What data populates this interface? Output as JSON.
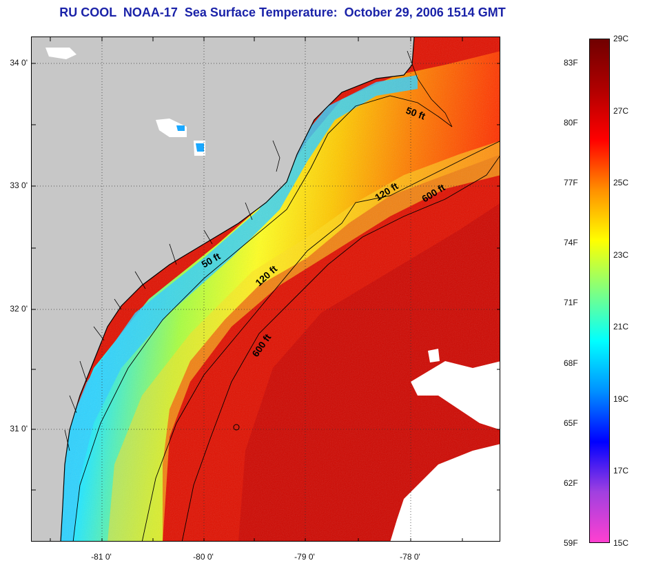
{
  "title": "RU COOL  NOAA-17  Sea Surface Temperature:  October 29, 2006 1514 GMT",
  "map": {
    "lon_ticks": [
      "-81 0'",
      "-80 0'",
      "-79 0'",
      "-78 0'"
    ],
    "lat_ticks": [
      "34 0'",
      "33 0'",
      "32 0'",
      "31 0'"
    ],
    "colors": {
      "land": "#c7c7c7",
      "cloud": "#ffffff",
      "coastline": "#000000"
    },
    "contour_labels": [
      {
        "id": "label-50ft-north",
        "text": "50 ft"
      },
      {
        "id": "label-120ft-north",
        "text": "120 ft"
      },
      {
        "id": "label-600ft-north",
        "text": "600 ft"
      },
      {
        "id": "label-50ft-south",
        "text": "50 ft"
      },
      {
        "id": "label-120ft-south",
        "text": "120 ft"
      },
      {
        "id": "label-600ft-south",
        "text": "600 ft"
      }
    ]
  },
  "legend": {
    "fahrenheit_labels": [
      "83F",
      "80F",
      "77F",
      "74F",
      "71F",
      "68F",
      "65F",
      "62F",
      "59F"
    ],
    "celsius_labels": [
      "29C",
      "27C",
      "25C",
      "23C",
      "21C",
      "19C",
      "17C",
      "15C"
    ],
    "range_c": [
      15,
      29
    ],
    "gradient_colors": [
      "#ff40d0",
      "#a040e0",
      "#0000ff",
      "#0090ff",
      "#00ffff",
      "#80ff80",
      "#ffff00",
      "#ff9000",
      "#ff0000",
      "#b00000",
      "#700000"
    ]
  }
}
